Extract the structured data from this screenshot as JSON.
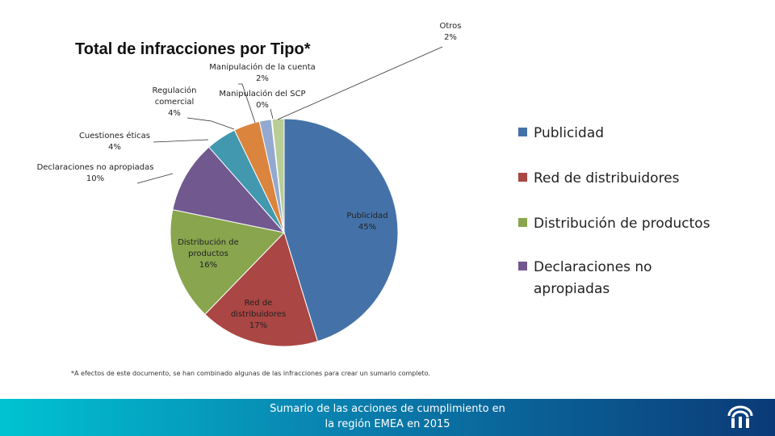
{
  "chart_data": {
    "type": "pie",
    "title": "Total de infracciones por Tipo*",
    "slices": [
      {
        "label": "Publicidad",
        "label_lines": [
          "Publicidad"
        ],
        "pct_text": "45%",
        "value": 45.3,
        "color": "#4472a8"
      },
      {
        "label": "Red de distribuidores",
        "label_lines": [
          "Red de",
          "distribuidores"
        ],
        "pct_text": "17%",
        "value": 17.0,
        "color": "#aa4643"
      },
      {
        "label": "Distribución de productos",
        "label_lines": [
          "Distribución de",
          "productos"
        ],
        "pct_text": "16%",
        "value": 16.0,
        "color": "#89a54e"
      },
      {
        "label": "Declaraciones no apropiadas",
        "label_lines": [
          "Declaraciones no apropiadas"
        ],
        "pct_text": "10%",
        "value": 10.3,
        "color": "#71588f"
      },
      {
        "label": "Cuestiones éticas",
        "label_lines": [
          "Cuestiones éticas"
        ],
        "pct_text": "4%",
        "value": 4.3,
        "color": "#4198af"
      },
      {
        "label": "Regulación comercial",
        "label_lines": [
          "Regulación",
          "comercial"
        ],
        "pct_text": "4%",
        "value": 3.7,
        "color": "#db843d"
      },
      {
        "label": "Manipulación de la cuenta",
        "label_lines": [
          "Manipulación de la cuenta"
        ],
        "pct_text": "2%",
        "value": 1.7,
        "color": "#93a9cf"
      },
      {
        "label": "Manipulación del SCP",
        "label_lines": [
          "Manipulación del SCP"
        ],
        "pct_text": "0%",
        "value": 0.1,
        "color": "#d19392"
      },
      {
        "label": "Otros",
        "label_lines": [
          "Otros"
        ],
        "pct_text": "2%",
        "value": 1.7,
        "color": "#b9cd96"
      }
    ],
    "legend": {
      "placement": "right",
      "items": [
        {
          "text_lines": [
            "Publicidad"
          ],
          "color": "#4472a8"
        },
        {
          "text_lines": [
            "Red de distribuidores"
          ],
          "color": "#aa4643"
        },
        {
          "text_lines": [
            "Distribución de productos"
          ],
          "color": "#89a54e"
        },
        {
          "text_lines": [
            "Declaraciones no",
            "apropiadas"
          ],
          "color": "#71588f"
        }
      ]
    }
  },
  "footnote": "*A efectos de este documento, se han combinado algunas de las infracciones para crear un sumario completo.",
  "footer": {
    "line1": "Sumario de las acciones de cumplimiento en",
    "line2": "la región EMEA en 2015"
  }
}
